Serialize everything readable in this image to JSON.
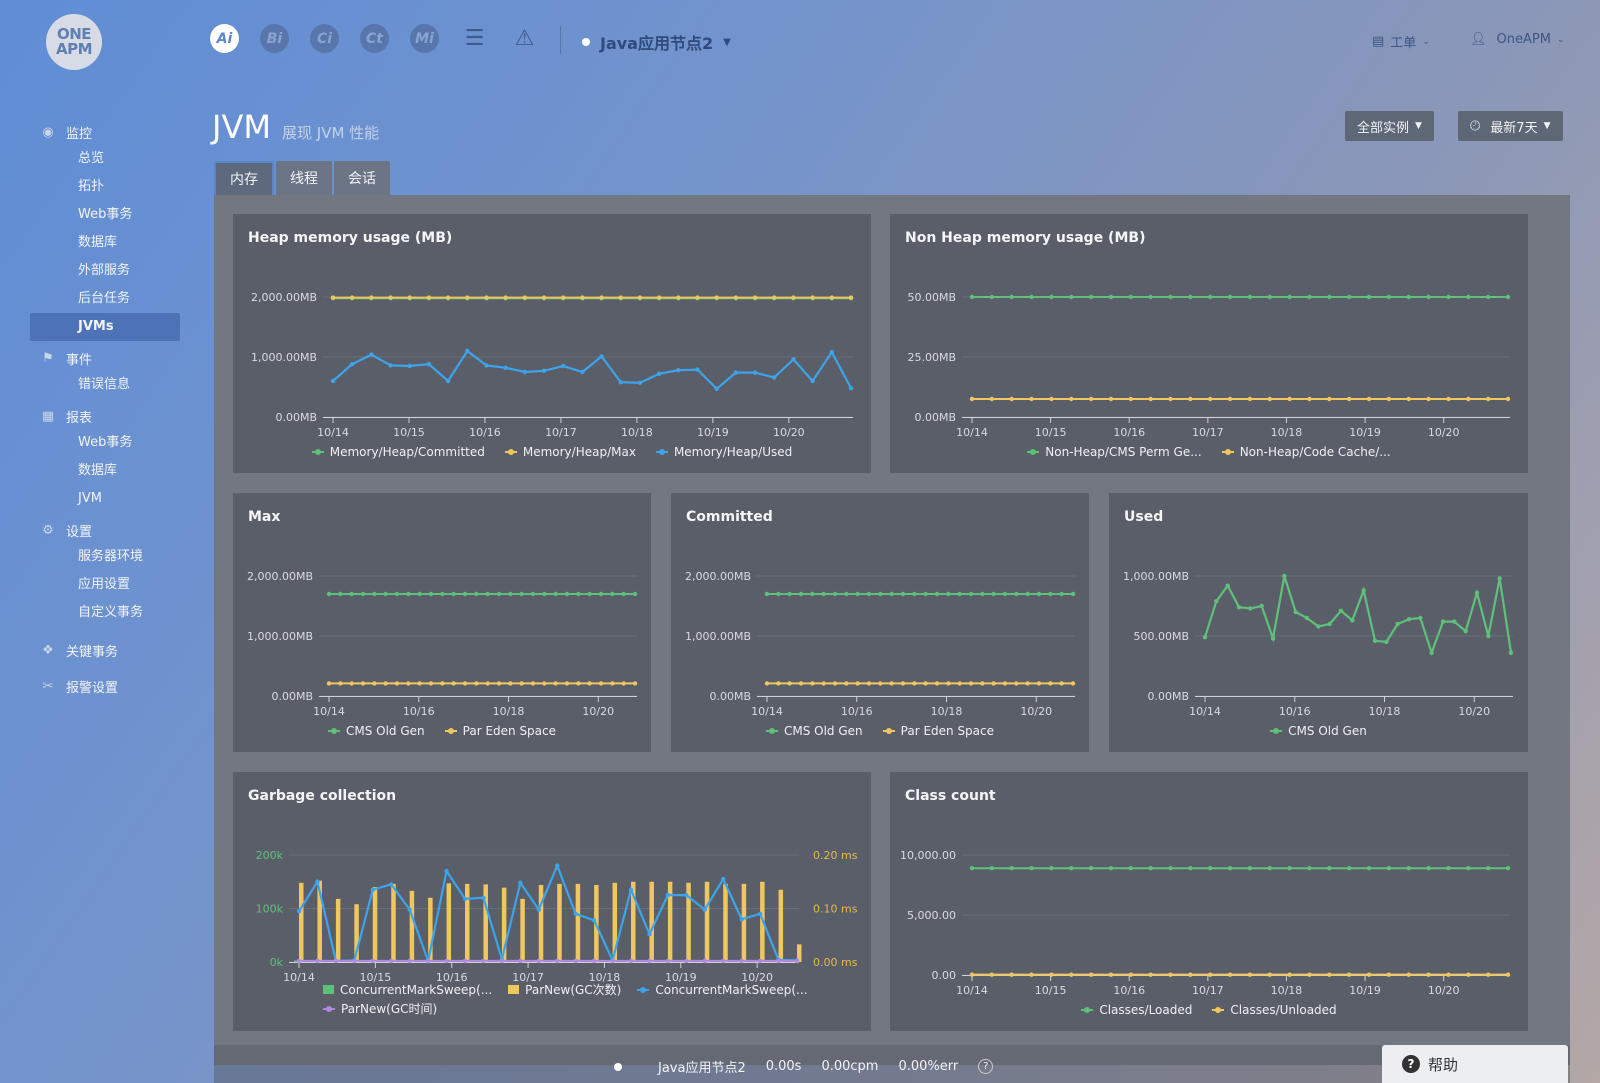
{
  "logo": {
    "line1": "ONE",
    "line2": "APM"
  },
  "topnav": {
    "icons": [
      {
        "label": "Ai",
        "icon": "ai-icon",
        "active": true
      },
      {
        "label": "Bi",
        "icon": "bi-icon",
        "active": false
      },
      {
        "label": "Ci",
        "icon": "ci-icon",
        "active": false
      },
      {
        "label": "Ct",
        "icon": "ct-icon",
        "active": false
      },
      {
        "label": "Mi",
        "icon": "mi-icon",
        "active": false
      },
      {
        "label": "☰",
        "icon": "server-list-icon",
        "active": false
      },
      {
        "label": "⚠",
        "icon": "alert-icon",
        "active": false
      }
    ],
    "app_name": "Java应用节点2",
    "workorder_label": "工单",
    "user_label": "OneAPM"
  },
  "sidebar": {
    "groups": [
      {
        "label": "监控",
        "icon": "eye-icon",
        "glyph": "◉",
        "items": [
          "总览",
          "拓扑",
          "Web事务",
          "数据库",
          "外部服务",
          "后台任务",
          "JVMs"
        ]
      },
      {
        "label": "事件",
        "icon": "flag-icon",
        "glyph": "⚑",
        "items": [
          "错误信息"
        ]
      },
      {
        "label": "报表",
        "icon": "table-icon",
        "glyph": "▦",
        "items": [
          "Web事务",
          "数据库",
          "JVM"
        ]
      },
      {
        "label": "设置",
        "icon": "gears-icon",
        "glyph": "⚙",
        "items": [
          "服务器环境",
          "应用设置",
          "自定义事务"
        ]
      },
      {
        "label": "关键事务",
        "icon": "key-transaction-icon",
        "glyph": "❖",
        "items": []
      },
      {
        "label": "报警设置",
        "icon": "wrench-icon",
        "glyph": "✂",
        "items": []
      }
    ],
    "active_item": "JVMs"
  },
  "header": {
    "title": "JVM",
    "subtitle": "展现 JVM 性能",
    "instances_label": "全部实例",
    "time_label": "最新7天"
  },
  "tabs": [
    {
      "label": "内存",
      "active": true
    },
    {
      "label": "线程",
      "active": false
    },
    {
      "label": "会话",
      "active": false
    }
  ],
  "colors": {
    "green": "#5fc07a",
    "yellow": "#f0c75e",
    "blue": "#3da4ea",
    "purple": "#b388e0"
  },
  "chart_data": [
    {
      "id": "heap",
      "type": "line",
      "title": "Heap memory usage (MB)",
      "yticks": [
        "2,000.00MB",
        "1,000.00MB",
        "0.00MB"
      ],
      "ylim": [
        0,
        2000
      ],
      "xticks": [
        "10/14",
        "10/15",
        "10/16",
        "10/17",
        "10/18",
        "10/19",
        "10/20"
      ],
      "series": [
        {
          "name": "Memory/Heap/Committed",
          "color": "green",
          "values": [
            1980,
            1980,
            1980,
            1980,
            1980,
            1980,
            1980,
            1980,
            1980,
            1980,
            1980,
            1980,
            1980,
            1980,
            1980,
            1980,
            1980,
            1980,
            1980,
            1980,
            1980,
            1980,
            1980,
            1980,
            1980,
            1980,
            1980,
            1980
          ]
        },
        {
          "name": "Memory/Heap/Max",
          "color": "yellow",
          "values": [
            1990,
            1990,
            1990,
            1990,
            1990,
            1990,
            1990,
            1990,
            1990,
            1990,
            1990,
            1990,
            1990,
            1990,
            1990,
            1990,
            1990,
            1990,
            1990,
            1990,
            1990,
            1990,
            1990,
            1990,
            1990,
            1990,
            1990,
            1990
          ]
        },
        {
          "name": "Memory/Heap/Used",
          "color": "blue",
          "values": [
            600,
            880,
            1040,
            860,
            850,
            880,
            600,
            1100,
            860,
            820,
            750,
            770,
            850,
            750,
            1010,
            580,
            570,
            720,
            780,
            790,
            470,
            740,
            740,
            660,
            960,
            600,
            1080,
            480
          ]
        }
      ]
    },
    {
      "id": "nonheap",
      "type": "line",
      "title": "Non Heap memory usage (MB)",
      "yticks": [
        "50.00MB",
        "25.00MB",
        "0.00MB"
      ],
      "ylim": [
        0,
        50
      ],
      "xticks": [
        "10/14",
        "10/15",
        "10/16",
        "10/17",
        "10/18",
        "10/19",
        "10/20"
      ],
      "series": [
        {
          "name": "Non-Heap/CMS Perm Ge...",
          "color": "green",
          "values": [
            50,
            50,
            50,
            50,
            50,
            50,
            50,
            50,
            50,
            50,
            50,
            50,
            50,
            50,
            50,
            50,
            50,
            50,
            50,
            50,
            50,
            50,
            50,
            50,
            50,
            50,
            50,
            50
          ]
        },
        {
          "name": "Non-Heap/Code Cache/...",
          "color": "yellow",
          "values": [
            7.5,
            7.5,
            7.5,
            7.5,
            7.5,
            7.5,
            7.5,
            7.5,
            7.5,
            7.5,
            7.5,
            7.5,
            7.5,
            7.5,
            7.5,
            7.5,
            7.5,
            7.5,
            7.5,
            7.5,
            7.5,
            7.5,
            7.5,
            7.5,
            7.5,
            7.5,
            7.5,
            7.5
          ]
        }
      ]
    },
    {
      "id": "max",
      "type": "line",
      "title": "Max",
      "yticks": [
        "2,000.00MB",
        "1,000.00MB",
        "0.00MB"
      ],
      "ylim": [
        0,
        2000
      ],
      "xticks": [
        "10/14",
        "10/16",
        "10/18",
        "10/20"
      ],
      "series": [
        {
          "name": "CMS Old Gen",
          "color": "green",
          "values": [
            1700,
            1700,
            1700,
            1700,
            1700,
            1700,
            1700,
            1700,
            1700,
            1700,
            1700,
            1700,
            1700,
            1700,
            1700,
            1700,
            1700,
            1700,
            1700,
            1700,
            1700,
            1700,
            1700,
            1700,
            1700,
            1700,
            1700,
            1700
          ]
        },
        {
          "name": "Par Eden Space",
          "color": "yellow",
          "values": [
            210,
            210,
            210,
            210,
            210,
            210,
            210,
            210,
            210,
            210,
            210,
            210,
            210,
            210,
            210,
            210,
            210,
            210,
            210,
            210,
            210,
            210,
            210,
            210,
            210,
            210,
            210,
            210
          ]
        }
      ]
    },
    {
      "id": "committed",
      "type": "line",
      "title": "Committed",
      "yticks": [
        "2,000.00MB",
        "1,000.00MB",
        "0.00MB"
      ],
      "ylim": [
        0,
        2000
      ],
      "xticks": [
        "10/14",
        "10/16",
        "10/18",
        "10/20"
      ],
      "series": [
        {
          "name": "CMS Old Gen",
          "color": "green",
          "values": [
            1700,
            1700,
            1700,
            1700,
            1700,
            1700,
            1700,
            1700,
            1700,
            1700,
            1700,
            1700,
            1700,
            1700,
            1700,
            1700,
            1700,
            1700,
            1700,
            1700,
            1700,
            1700,
            1700,
            1700,
            1700,
            1700,
            1700,
            1700
          ]
        },
        {
          "name": "Par Eden Space",
          "color": "yellow",
          "values": [
            210,
            210,
            210,
            210,
            210,
            210,
            210,
            210,
            210,
            210,
            210,
            210,
            210,
            210,
            210,
            210,
            210,
            210,
            210,
            210,
            210,
            210,
            210,
            210,
            210,
            210,
            210,
            210
          ]
        }
      ]
    },
    {
      "id": "used",
      "type": "line",
      "title": "Used",
      "yticks": [
        "1,000.00MB",
        "500.00MB",
        "0.00MB"
      ],
      "ylim": [
        0,
        1000
      ],
      "xticks": [
        "10/14",
        "10/16",
        "10/18",
        "10/20"
      ],
      "series": [
        {
          "name": "CMS Old Gen",
          "color": "green",
          "values": [
            490,
            790,
            920,
            740,
            730,
            750,
            480,
            1000,
            700,
            650,
            580,
            600,
            710,
            630,
            880,
            460,
            450,
            600,
            640,
            650,
            360,
            620,
            620,
            540,
            860,
            500,
            980,
            360
          ]
        }
      ]
    },
    {
      "id": "gc",
      "type": "bar",
      "title": "Garbage collection",
      "yticks": [
        "200k",
        "100k",
        "0k"
      ],
      "ylim": [
        0,
        200000
      ],
      "y2ticks": [
        "0.20 ms",
        "0.10 ms",
        "0.00 ms"
      ],
      "y2lim": [
        0,
        0.2
      ],
      "xticks": [
        "10/14",
        "10/15",
        "10/16",
        "10/17",
        "10/18",
        "10/19",
        "10/20"
      ],
      "series": [
        {
          "name": "ConcurrentMarkSweep(...",
          "color": "green",
          "kind": "bar",
          "values": [
            3000,
            3000,
            3000,
            3000,
            3000,
            3000,
            3000,
            3000,
            3000,
            3000,
            3000,
            3000,
            3000,
            3000,
            3000,
            3000,
            3000,
            3000,
            3000,
            3000,
            3000,
            3000,
            3000,
            3000,
            3000,
            3000,
            3000,
            3000
          ]
        },
        {
          "name": "ParNew(GC次数)",
          "color": "yellow",
          "kind": "bar",
          "values": [
            148000,
            152000,
            118000,
            108000,
            140000,
            146000,
            133000,
            120000,
            147000,
            146000,
            145000,
            139000,
            118000,
            144000,
            146000,
            146000,
            144000,
            148000,
            150000,
            150000,
            150000,
            148000,
            150000,
            146000,
            146000,
            150000,
            135000,
            33000
          ]
        },
        {
          "name": "ConcurrentMarkSweep(...",
          "color": "blue",
          "kind": "line",
          "axis": "y2",
          "values": [
            0.095,
            0.15,
            0.002,
            0.003,
            0.135,
            0.145,
            0.098,
            0.002,
            0.17,
            0.118,
            0.12,
            0.005,
            0.148,
            0.098,
            0.18,
            0.09,
            0.078,
            0.003,
            0.135,
            0.052,
            0.125,
            0.125,
            0.098,
            0.155,
            0.08,
            0.09,
            0.004,
            0.003
          ]
        },
        {
          "name": "ParNew(GC时间)",
          "color": "purple",
          "kind": "line",
          "axis": "y2",
          "values": [
            0.002,
            0.002,
            0.002,
            0.002,
            0.002,
            0.002,
            0.002,
            0.002,
            0.002,
            0.002,
            0.002,
            0.002,
            0.002,
            0.002,
            0.002,
            0.002,
            0.002,
            0.002,
            0.002,
            0.002,
            0.002,
            0.002,
            0.002,
            0.002,
            0.002,
            0.002,
            0.002,
            0.002
          ]
        }
      ]
    },
    {
      "id": "classcount",
      "type": "line",
      "title": "Class count",
      "yticks": [
        "10,000.00",
        "5,000.00",
        "0.00"
      ],
      "ylim": [
        0,
        10000
      ],
      "xticks": [
        "10/14",
        "10/15",
        "10/16",
        "10/17",
        "10/18",
        "10/19",
        "10/20"
      ],
      "series": [
        {
          "name": "Classes/Loaded",
          "color": "green",
          "values": [
            8900,
            8900,
            8900,
            8900,
            8900,
            8900,
            8900,
            8900,
            8900,
            8900,
            8900,
            8900,
            8900,
            8900,
            8900,
            8900,
            8900,
            8900,
            8900,
            8900,
            8900,
            8900,
            8900,
            8900,
            8900,
            8900,
            8900,
            8900
          ]
        },
        {
          "name": "Classes/Unloaded",
          "color": "yellow",
          "values": [
            30,
            30,
            30,
            30,
            30,
            30,
            30,
            30,
            30,
            30,
            30,
            30,
            30,
            30,
            30,
            30,
            30,
            30,
            30,
            30,
            30,
            30,
            30,
            30,
            30,
            30,
            30,
            30
          ]
        }
      ]
    }
  ],
  "statusbar": {
    "app_name": "Java应用节点2",
    "response": "0.00s",
    "throughput": "0.00cpm",
    "error_rate": "0.00%err"
  },
  "help_label": "帮助"
}
